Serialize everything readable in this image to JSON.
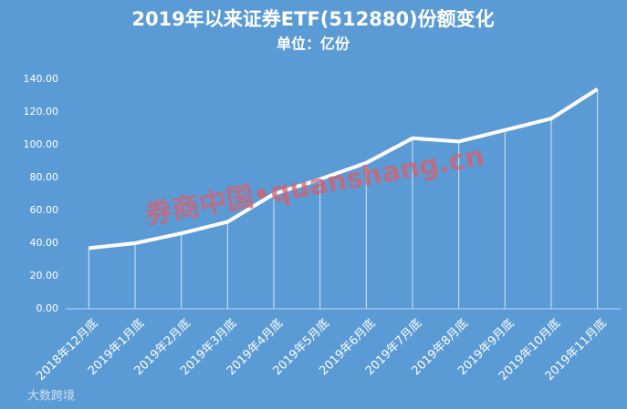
{
  "chart_data": {
    "type": "line",
    "title": "2019年以来证券ETF(512880)份额变化",
    "subtitle": "单位：亿份",
    "annotations": [
      "券商中国•quanshang.cn",
      "大数跨境"
    ],
    "categories": [
      "2018年12月底",
      "2019年1月底",
      "2019年2月底",
      "2019年3月底",
      "2019年4月底",
      "2019年5月底",
      "2019年6月底",
      "2019年7月底",
      "2019年8月底",
      "2019年9月底",
      "2019年10月底",
      "2019年11月底"
    ],
    "values": [
      37,
      40,
      46,
      53,
      70,
      79,
      89,
      104,
      102,
      109,
      116,
      134
    ],
    "color": "#ffffff",
    "ylim": [
      0,
      140
    ],
    "yticks": [
      {
        "value": 0,
        "label": "0.00"
      },
      {
        "value": 20,
        "label": "20.00"
      },
      {
        "value": 40,
        "label": "40.00"
      },
      {
        "value": 60,
        "label": "60.00"
      },
      {
        "value": 80,
        "label": "80.00"
      },
      {
        "value": 100,
        "label": "100.00"
      },
      {
        "value": 120,
        "label": "120.00"
      },
      {
        "value": 140,
        "label": "140.00"
      }
    ],
    "drop_lines": true
  }
}
